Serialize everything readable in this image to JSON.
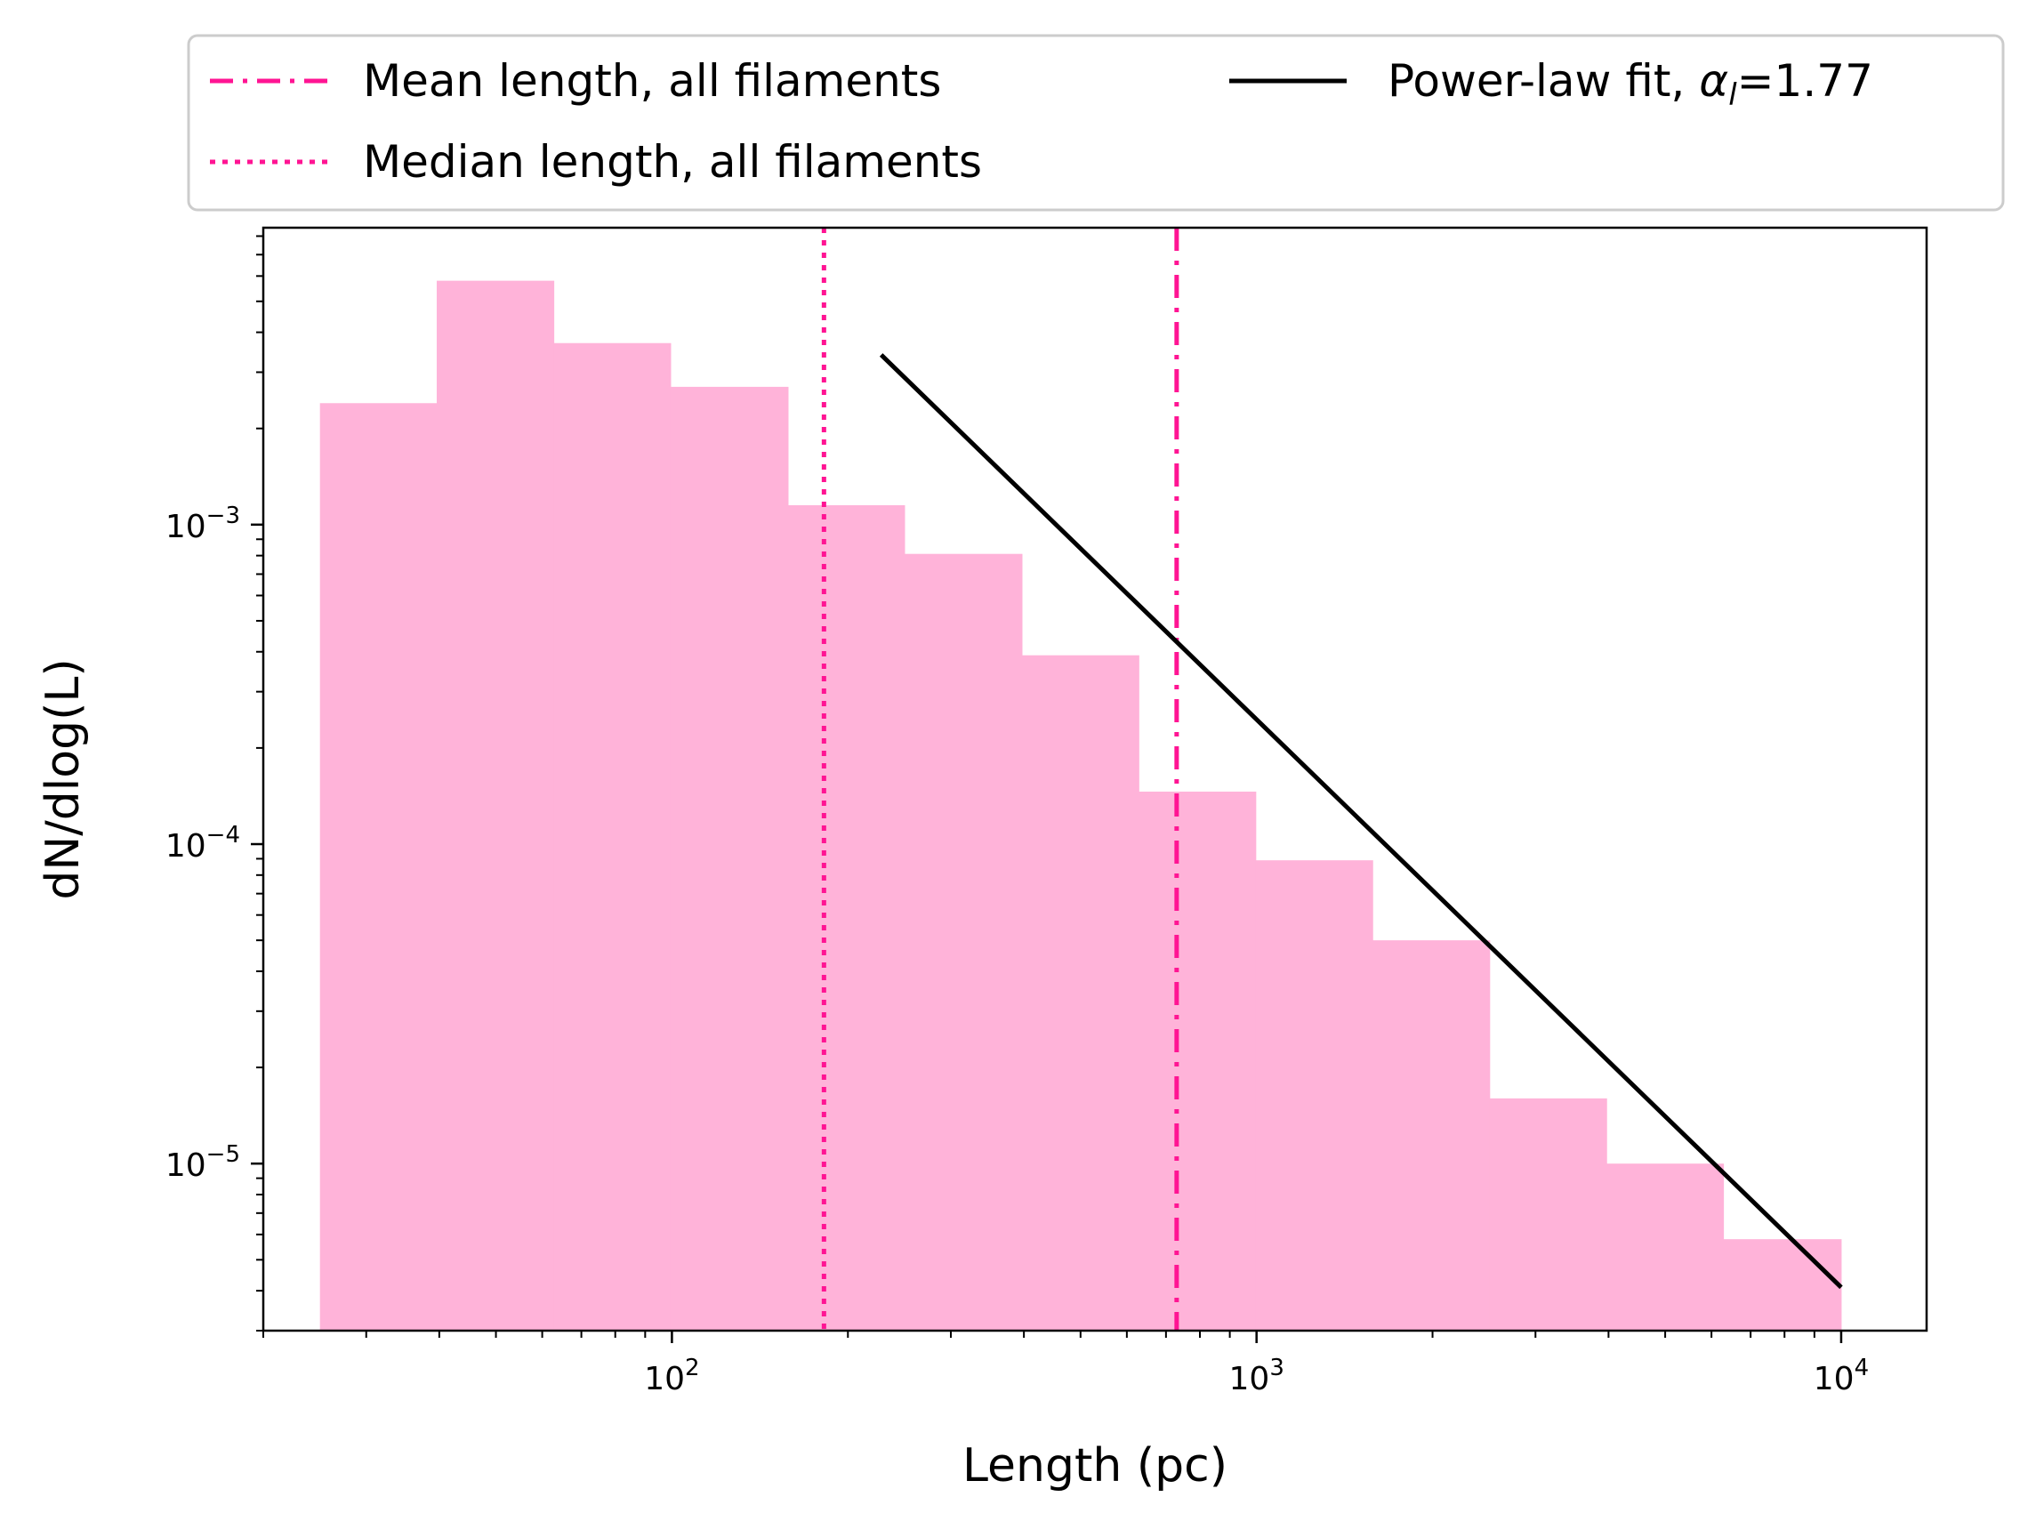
{
  "chart_data": {
    "type": "bar",
    "xscale": "log",
    "yscale": "log",
    "xlabel": "Length (pc)",
    "ylabel": "dN/dlog(L)",
    "xlim": [
      20,
      14000
    ],
    "ylim": [
      3e-06,
      0.0085
    ],
    "grid": false,
    "legend_position": "top",
    "x_ticks": [
      {
        "value": 100,
        "base": "10",
        "exp": "2"
      },
      {
        "value": 1000,
        "base": "10",
        "exp": "3"
      },
      {
        "value": 10000,
        "base": "10",
        "exp": "4"
      }
    ],
    "y_ticks": [
      {
        "value": 1e-05,
        "base": "10",
        "exp": "−5"
      },
      {
        "value": 0.0001,
        "base": "10",
        "exp": "−4"
      },
      {
        "value": 0.001,
        "base": "10",
        "exp": "−3"
      }
    ],
    "histogram": {
      "color": "#ffb3d9",
      "bin_edges": [
        25,
        39.6,
        62.8,
        99.5,
        158,
        250,
        397,
        629,
        997,
        1580,
        2505,
        3970,
        6290,
        10000
      ],
      "values": [
        0.0024,
        0.0058,
        0.0037,
        0.0027,
        0.00115,
        0.00081,
        0.00039,
        0.000146,
        8.9e-05,
        5e-05,
        1.6e-05,
        1e-05,
        5.8e-06
      ]
    },
    "mean_line": {
      "label": "Mean length, all filaments",
      "x": 730,
      "color": "#ff1493",
      "style": "dashdot"
    },
    "median_line": {
      "label": "Median length, all filaments",
      "x": 182,
      "color": "#ff1493",
      "style": "dotted"
    },
    "power_law_fit": {
      "label_prefix": "Power-law fit, ",
      "label_symbol": "α",
      "label_subscript": "l",
      "label_value": "=1.77",
      "alpha": 1.77,
      "x_start": 228,
      "x_end": 10000,
      "y_start": 0.0034,
      "y_end": 4.1e-06,
      "color": "#000000"
    }
  }
}
